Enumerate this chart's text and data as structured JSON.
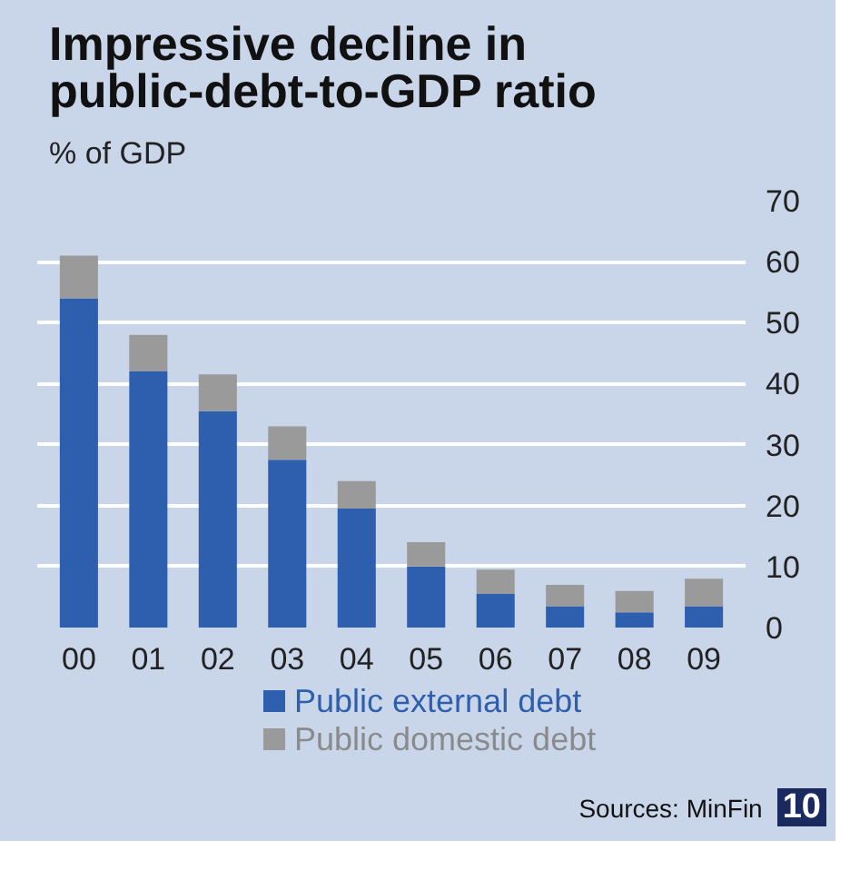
{
  "chart_data": {
    "type": "bar",
    "title": "Impressive decline in public-debt-to-GDP ratio",
    "ylabel": "% of GDP",
    "categories": [
      "00",
      "01",
      "02",
      "03",
      "04",
      "05",
      "06",
      "07",
      "08",
      "09"
    ],
    "stacked": true,
    "series": [
      {
        "name": "Public external debt",
        "color": "#2e5fae",
        "values": [
          54,
          42,
          35.5,
          27.5,
          19.5,
          10,
          5.5,
          3.5,
          2.5,
          3.5
        ]
      },
      {
        "name": "Public domestic debt",
        "color": "#9a9a9a",
        "values": [
          7,
          6,
          6,
          5.5,
          4.5,
          4,
          4,
          3.5,
          3.5,
          4.5
        ]
      }
    ],
    "ylim": [
      0,
      70
    ],
    "yticks": [
      0,
      10,
      20,
      30,
      40,
      50,
      60,
      70
    ],
    "grid": "y",
    "legend": "bottom",
    "annotations": [
      "Sources: MinFin",
      "10"
    ]
  }
}
